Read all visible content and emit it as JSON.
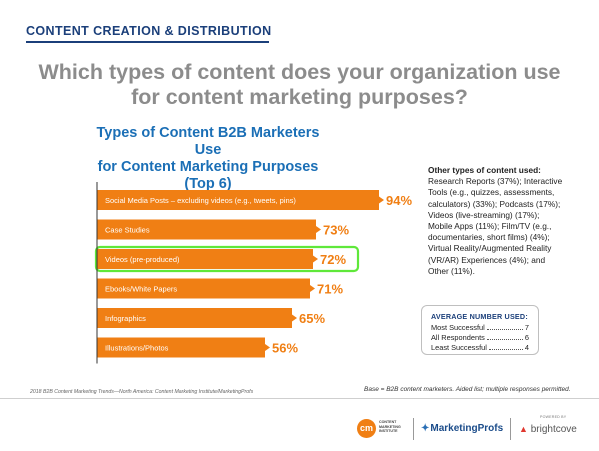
{
  "section_title": "CONTENT CREATION & DISTRIBUTION",
  "question": {
    "line1": "Which types of content does your organization use",
    "line2": "for content marketing purposes?"
  },
  "colors": {
    "bar": "#f07f14",
    "title_blue": "#1b6fb6",
    "navy": "#1b3f7a",
    "highlight": "#5fe83a"
  },
  "chart_data": {
    "type": "bar",
    "orientation": "horizontal",
    "title_lines": [
      "Types of Content B2B Marketers Use",
      "for Content Marketing Purposes",
      "(Top 6)"
    ],
    "categories": [
      "Social Media Posts – excluding videos (e.g., tweets, pins)",
      "Case Studies",
      "Videos (pre-produced)",
      "Ebooks/White Papers",
      "Infographics",
      "Illustrations/Photos"
    ],
    "values": [
      94,
      73,
      72,
      71,
      65,
      56
    ],
    "value_labels": [
      "94%",
      "73%",
      "72%",
      "71%",
      "65%",
      "56%"
    ],
    "highlighted": "Videos (pre-produced)",
    "xlim": [
      0,
      100
    ],
    "grid": false,
    "legend": "none"
  },
  "other_types": {
    "heading": "Other types of content used:",
    "lines": [
      "Research Reports (37%); Interactive",
      "Tools (e.g., quizzes, assessments,",
      "calculators) (33%); Podcasts (17%);",
      "Videos (live-streaming) (17%);",
      "Mobile Apps (11%); Film/TV (e.g.,",
      "documentaries, short films) (4%);",
      "Virtual Reality/Augmented Reality",
      "(VR/AR) Experiences (4%); and",
      "Other (11%)."
    ]
  },
  "average": {
    "title": "AVERAGE NUMBER USED:",
    "rows": [
      {
        "label": "Most Successful",
        "value": "7"
      },
      {
        "label": "All Respondents",
        "value": "6"
      },
      {
        "label": "Least Successful",
        "value": "4"
      }
    ]
  },
  "source": "2018 B2B Content Marketing Trends—North America: Content Marketing Institute/MarketingProfs",
  "base": "Base = B2B content marketers. Aided list; multiple responses permitted.",
  "footer": {
    "cm_mark": "cm",
    "cm_text": "CONTENT MARKETING INSTITUTE",
    "marketingprofs": "MarketingProfs",
    "powered_by": "POWERED BY",
    "brightcove": "brightcove"
  }
}
